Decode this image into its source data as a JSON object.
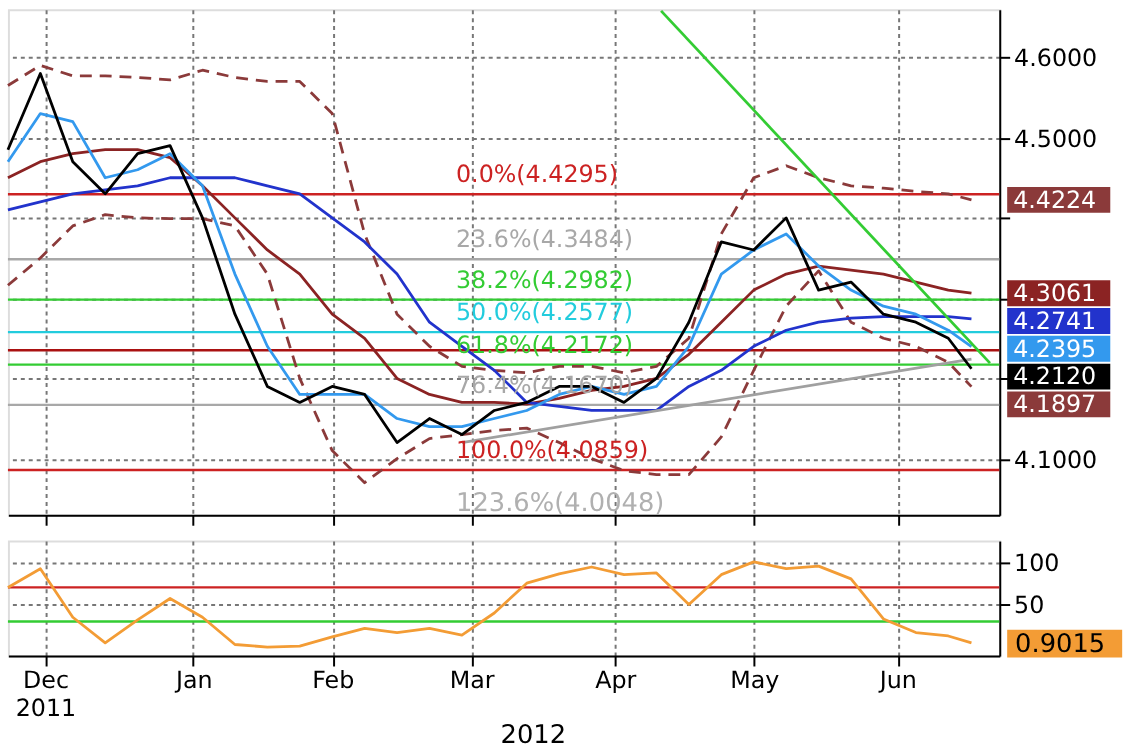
{
  "chart_data": [
    {
      "type": "line",
      "tick_labels": "y",
      "grid": true,
      "marker": "none",
      "x": [
        "2011-12-07",
        "2011-12-14",
        "2011-12-21",
        "2011-12-28",
        "2012-01-04",
        "2012-01-11",
        "2012-01-18",
        "2012-01-25",
        "2012-02-01",
        "2012-02-08",
        "2012-02-15",
        "2012-02-22",
        "2012-02-29",
        "2012-03-07",
        "2012-03-14",
        "2012-03-21",
        "2012-03-28",
        "2012-04-04",
        "2012-04-11",
        "2012-04-18",
        "2012-04-25",
        "2012-05-02",
        "2012-05-09",
        "2012-05-16",
        "2012-05-23",
        "2012-05-30",
        "2012-06-06",
        "2012-06-13",
        "2012-06-20",
        "2012-06-27",
        "2012-07-02"
      ],
      "xlim": [
        "2011-12-07",
        "2012-07-08"
      ],
      "xticks": [
        {
          "value": "2011-12-15",
          "label": null
        },
        {
          "value": "2012-01-16",
          "label": null
        },
        {
          "value": "2012-02-15",
          "label": null
        },
        {
          "value": "2012-03-16",
          "label": null
        },
        {
          "value": "2012-04-16",
          "label": null
        },
        {
          "value": "2012-05-16",
          "label": null
        },
        {
          "value": "2012-06-16",
          "label": null
        }
      ],
      "ylim": [
        4.03,
        4.66
      ],
      "yticks": [
        {
          "value": 4.1,
          "label": "4.1000"
        },
        {
          "value": 4.2,
          "label": null
        },
        {
          "value": 4.3,
          "label": null
        },
        {
          "value": 4.4,
          "label": null
        },
        {
          "value": 4.5,
          "label": "4.5000"
        },
        {
          "value": 4.6,
          "label": "4.6000"
        }
      ],
      "series": [
        {
          "color": "#8b3a3a",
          "line_style": "dashed",
          "values": [
            4.565,
            4.59,
            4.577,
            4.577,
            4.575,
            4.572,
            4.584,
            4.575,
            4.57,
            4.57,
            4.53,
            4.38,
            4.28,
            4.24,
            4.215,
            4.21,
            4.207,
            4.215,
            4.215,
            4.207,
            4.215,
            4.25,
            4.38,
            4.45,
            4.465,
            4.45,
            4.44,
            4.437,
            4.433,
            4.43,
            4.4224
          ],
          "value_labels": [
            null,
            null,
            null,
            null,
            null,
            null,
            null,
            null,
            null,
            null,
            null,
            null,
            null,
            null,
            null,
            null,
            null,
            null,
            null,
            null,
            null,
            null,
            null,
            null,
            null,
            null,
            null,
            null,
            null,
            null,
            "4.4224"
          ]
        },
        {
          "color": "#8b3a3a",
          "line_style": "dashed",
          "values": [
            4.316,
            4.35,
            4.39,
            4.404,
            4.4,
            4.399,
            4.399,
            4.39,
            4.33,
            4.2,
            4.11,
            4.07,
            4.1,
            4.125,
            4.13,
            4.135,
            4.138,
            4.12,
            4.1,
            4.085,
            4.08,
            4.08,
            4.127,
            4.21,
            4.29,
            4.334,
            4.27,
            4.25,
            4.24,
            4.22,
            4.1897
          ],
          "value_labels": [
            null,
            null,
            null,
            null,
            null,
            null,
            null,
            null,
            null,
            null,
            null,
            null,
            null,
            null,
            null,
            null,
            null,
            null,
            null,
            null,
            null,
            null,
            null,
            null,
            null,
            null,
            null,
            null,
            null,
            null,
            "4.1897"
          ]
        },
        {
          "color": "#8b2323",
          "values": [
            4.45,
            4.47,
            4.48,
            4.485,
            4.485,
            4.475,
            4.44,
            4.4,
            4.36,
            4.33,
            4.28,
            4.25,
            4.2,
            4.18,
            4.17,
            4.17,
            4.168,
            4.175,
            4.185,
            4.19,
            4.2,
            4.23,
            4.27,
            4.31,
            4.33,
            4.34,
            4.335,
            4.33,
            4.32,
            4.31,
            4.3061
          ],
          "value_labels": [
            null,
            null,
            null,
            null,
            null,
            null,
            null,
            null,
            null,
            null,
            null,
            null,
            null,
            null,
            null,
            null,
            null,
            null,
            null,
            null,
            null,
            null,
            null,
            null,
            null,
            null,
            null,
            null,
            null,
            null,
            "4.3061"
          ]
        },
        {
          "color": "#2233cc",
          "values": [
            4.41,
            4.42,
            4.43,
            4.435,
            4.44,
            4.45,
            4.45,
            4.45,
            4.44,
            4.43,
            4.4,
            4.37,
            4.33,
            4.27,
            4.24,
            4.21,
            4.17,
            4.165,
            4.16,
            4.16,
            4.16,
            4.19,
            4.21,
            4.24,
            4.26,
            4.27,
            4.275,
            4.277,
            4.277,
            4.277,
            4.2741
          ],
          "value_labels": [
            null,
            null,
            null,
            null,
            null,
            null,
            null,
            null,
            null,
            null,
            null,
            null,
            null,
            null,
            null,
            null,
            null,
            null,
            null,
            null,
            null,
            null,
            null,
            null,
            null,
            null,
            null,
            null,
            null,
            null,
            "4.2741"
          ]
        },
        {
          "color": "#3399ee",
          "values": [
            4.47,
            4.53,
            4.52,
            4.45,
            4.46,
            4.48,
            4.44,
            4.33,
            4.24,
            4.18,
            4.18,
            4.18,
            4.15,
            4.14,
            4.14,
            4.15,
            4.16,
            4.18,
            4.19,
            4.18,
            4.19,
            4.24,
            4.33,
            4.36,
            4.38,
            4.34,
            4.31,
            4.29,
            4.28,
            4.26,
            4.2395
          ],
          "value_labels": [
            null,
            null,
            null,
            null,
            null,
            null,
            null,
            null,
            null,
            null,
            null,
            null,
            null,
            null,
            null,
            null,
            null,
            null,
            null,
            null,
            null,
            null,
            null,
            null,
            null,
            null,
            null,
            null,
            null,
            null,
            "4.2395"
          ]
        },
        {
          "color": "#a0a0a0",
          "x": [
            "2012-03-14",
            "2012-07-02"
          ],
          "values": [
            4.12,
            4.224
          ]
        },
        {
          "color": "#33cc33",
          "x": [
            "2012-04-26",
            "2012-07-06"
          ],
          "values": [
            4.658,
            4.219
          ]
        },
        {
          "color": "#000000",
          "values": [
            4.485,
            4.58,
            4.47,
            4.43,
            4.48,
            4.49,
            4.4,
            4.28,
            4.19,
            4.17,
            4.19,
            4.18,
            4.12,
            4.15,
            4.13,
            4.16,
            4.17,
            4.19,
            4.19,
            4.17,
            4.2,
            4.27,
            4.37,
            4.36,
            4.4,
            4.31,
            4.32,
            4.28,
            4.27,
            4.25,
            4.212
          ],
          "value_labels": [
            null,
            null,
            null,
            null,
            null,
            null,
            null,
            null,
            null,
            null,
            null,
            null,
            null,
            null,
            null,
            null,
            null,
            null,
            null,
            null,
            null,
            null,
            null,
            null,
            null,
            null,
            null,
            null,
            null,
            null,
            "4.2120"
          ]
        }
      ],
      "ref_lines": [
        {
          "axis": "y",
          "value": 4.4295,
          "label": "0.0%(4.4295)",
          "color": "#cc2222"
        },
        {
          "axis": "y",
          "value": 4.3484,
          "label": "23.6%(4.3484)",
          "color": "#a8a8a8"
        },
        {
          "axis": "y",
          "value": 4.2982,
          "label": "38.2%(4.2982)",
          "color": "#33cc33"
        },
        {
          "axis": "y",
          "value": 4.2577,
          "label": "50.0%(4.2577)",
          "color": "#22ccdd"
        },
        {
          "axis": "y",
          "value": 4.235,
          "label": null,
          "color": "#aa1111"
        },
        {
          "axis": "y",
          "value": 4.2172,
          "label": "61.8%(4.2172)",
          "color": "#33cc33"
        },
        {
          "axis": "y",
          "value": 4.167,
          "label": "76.4%(4.1670)",
          "color": "#a8a8a8"
        },
        {
          "axis": "y",
          "value": 4.0859,
          "label": "100.0%(4.0859)",
          "color": "#cc2222"
        }
      ],
      "annotations": [
        "123.6%(4.0048)"
      ]
    },
    {
      "type": "line",
      "grid": true,
      "marker": "none",
      "x": [
        "2011-12-07",
        "2011-12-14",
        "2011-12-21",
        "2011-12-28",
        "2012-01-04",
        "2012-01-11",
        "2012-01-18",
        "2012-01-25",
        "2012-02-01",
        "2012-02-08",
        "2012-02-15",
        "2012-02-22",
        "2012-02-29",
        "2012-03-07",
        "2012-03-14",
        "2012-03-21",
        "2012-03-28",
        "2012-04-04",
        "2012-04-11",
        "2012-04-18",
        "2012-04-25",
        "2012-05-02",
        "2012-05-09",
        "2012-05-16",
        "2012-05-23",
        "2012-05-30",
        "2012-06-06",
        "2012-06-13",
        "2012-06-20",
        "2012-06-27",
        "2012-07-02"
      ],
      "xlim": [
        "2011-12-07",
        "2012-07-08"
      ],
      "xticks": [
        {
          "value": "2011-12-15",
          "label": "Dec\n2011"
        },
        {
          "value": "2012-01-16",
          "label": "Jan"
        },
        {
          "value": "2012-02-15",
          "label": "Feb"
        },
        {
          "value": "2012-03-16",
          "label": "Mar"
        },
        {
          "value": "2012-04-16",
          "label": "Apr"
        },
        {
          "value": "2012-05-16",
          "label": "May"
        },
        {
          "value": "2012-06-16",
          "label": "Jun"
        }
      ],
      "ylim": [
        -10,
        125
      ],
      "yticks": [
        50,
        100
      ],
      "series": [
        {
          "color": "#f39c35",
          "values": [
            70,
            92,
            35,
            5,
            32,
            57,
            35,
            3,
            0,
            1,
            12,
            22,
            17,
            22,
            14,
            40,
            75,
            86,
            94,
            85,
            87,
            50,
            85,
            100,
            92,
            95,
            80,
            33,
            17,
            13,
            5
          ]
        }
      ],
      "ref_lines": [
        {
          "axis": "y",
          "value": 70,
          "label": null,
          "color": "#cc2222"
        },
        {
          "axis": "y",
          "value": 30,
          "label": null,
          "color": "#33cc33"
        }
      ],
      "annotations": [
        "2012",
        "0.9015"
      ]
    }
  ]
}
